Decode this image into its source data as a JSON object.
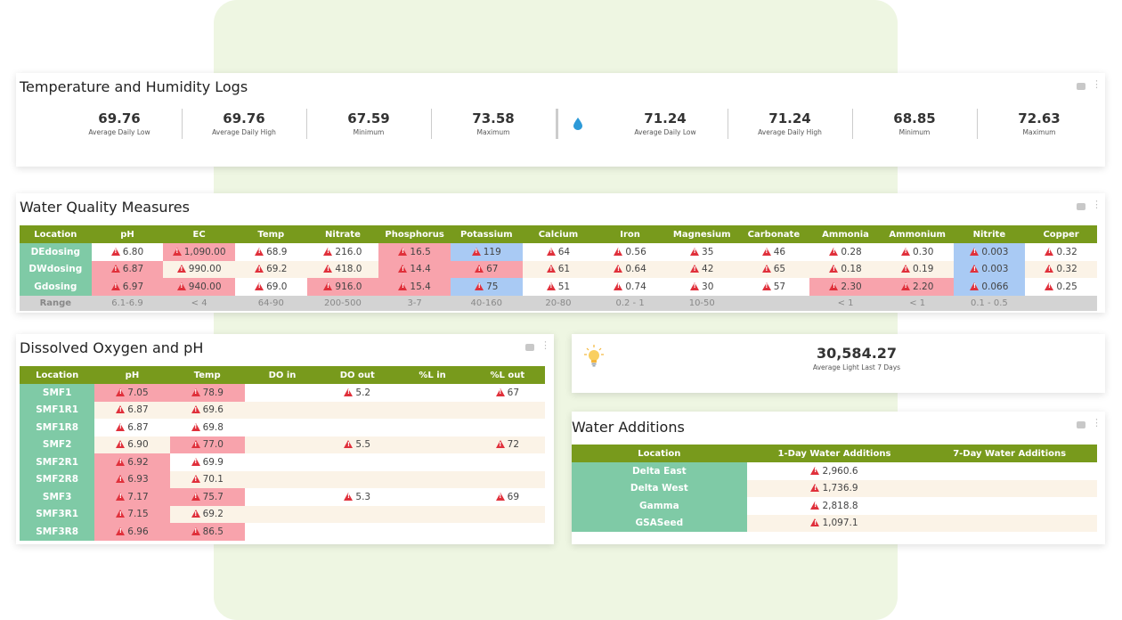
{
  "temp_humidity": {
    "title": "Temperature and Humidity Logs",
    "temp_kpis": [
      {
        "value": "69.76",
        "label": "Average Daily Low"
      },
      {
        "value": "69.76",
        "label": "Average Daily High"
      },
      {
        "value": "67.59",
        "label": "Minimum"
      },
      {
        "value": "73.58",
        "label": "Maximum"
      }
    ],
    "humidity_icon": "water-drop-icon",
    "humidity_kpis": [
      {
        "value": "71.24",
        "label": "Average Daily Low"
      },
      {
        "value": "71.24",
        "label": "Average Daily High"
      },
      {
        "value": "68.85",
        "label": "Minimum"
      },
      {
        "value": "72.63",
        "label": "Maximum"
      }
    ]
  },
  "water_quality": {
    "title": "Water Quality Measures",
    "headers": [
      "Location",
      "pH",
      "EC",
      "Temp",
      "Nitrate",
      "Phosphorus",
      "Potassium",
      "Calcium",
      "Iron",
      "Magnesium",
      "Carbonate",
      "Ammonia",
      "Ammonium",
      "Nitrite",
      "Copper"
    ],
    "rows": [
      {
        "location": "DEdosing",
        "values": [
          "6.80",
          "1,090.00",
          "68.9",
          "216.0",
          "16.5",
          "119",
          "64",
          "0.56",
          "35",
          "46",
          "0.28",
          "0.30",
          "0.003",
          "0.32"
        ]
      },
      {
        "location": "DWdosing",
        "values": [
          "6.87",
          "990.00",
          "69.2",
          "418.0",
          "14.4",
          "67",
          "61",
          "0.64",
          "42",
          "65",
          "0.18",
          "0.19",
          "0.003",
          "0.32"
        ]
      },
      {
        "location": "Gdosing",
        "values": [
          "6.97",
          "940.00",
          "69.0",
          "916.0",
          "15.4",
          "75",
          "51",
          "0.74",
          "30",
          "57",
          "2.30",
          "2.20",
          "0.066",
          "0.25"
        ]
      }
    ],
    "range_label": "Range",
    "ranges": [
      "6.1-6.9",
      "< 4",
      "64-90",
      "200-500",
      "3-7",
      "40-160",
      "20-80",
      "0.2 - 1",
      "10-50",
      "",
      "< 1",
      "< 1",
      "0.1 - 0.5",
      ""
    ]
  },
  "dissolved_oxygen": {
    "title": "Dissolved Oxygen and pH",
    "headers": [
      "Location",
      "pH",
      "Temp",
      "DO in",
      "DO out",
      "%L in",
      "%L out"
    ],
    "rows": [
      {
        "location": "SMF1",
        "values": [
          "7.05",
          "78.9",
          "",
          "5.2",
          "",
          "67"
        ]
      },
      {
        "location": "SMF1R1",
        "values": [
          "6.87",
          "69.6",
          "",
          "",
          "",
          ""
        ]
      },
      {
        "location": "SMF1R8",
        "values": [
          "6.87",
          "69.8",
          "",
          "",
          "",
          ""
        ]
      },
      {
        "location": "SMF2",
        "values": [
          "6.90",
          "77.0",
          "",
          "5.5",
          "",
          "72"
        ]
      },
      {
        "location": "SMF2R1",
        "values": [
          "6.92",
          "69.9",
          "",
          "",
          "",
          ""
        ]
      },
      {
        "location": "SMF2R8",
        "values": [
          "6.93",
          "70.1",
          "",
          "",
          "",
          ""
        ]
      },
      {
        "location": "SMF3",
        "values": [
          "7.17",
          "75.7",
          "",
          "5.3",
          "",
          "69"
        ]
      },
      {
        "location": "SMF3R1",
        "values": [
          "7.15",
          "69.2",
          "",
          "",
          "",
          ""
        ]
      },
      {
        "location": "SMF3R8",
        "values": [
          "6.96",
          "86.5",
          "",
          "",
          "",
          ""
        ]
      }
    ]
  },
  "light": {
    "value": "30,584.27",
    "label": "Average Light Last 7 Days",
    "icon": "lightbulb-icon"
  },
  "water_additions": {
    "title": "Water Additions",
    "headers": [
      "Location",
      "1-Day Water Additions",
      "7-Day Water Additions"
    ],
    "rows": [
      {
        "location": "Delta East",
        "one_day": "2,960.6",
        "seven_day": ""
      },
      {
        "location": "Delta West",
        "one_day": "1,736.9",
        "seven_day": ""
      },
      {
        "location": "Gamma",
        "one_day": "2,818.8",
        "seven_day": ""
      },
      {
        "location": "GSASeed",
        "one_day": "1,097.1",
        "seven_day": ""
      }
    ]
  },
  "colors": {
    "header_green": "#789a1c",
    "location_teal": "#7fcaa6",
    "alert_red": "#f8a3ac",
    "info_blue": "#a9caf4",
    "warning_icon": "#e0303b",
    "background_green": "#eef6e2"
  }
}
